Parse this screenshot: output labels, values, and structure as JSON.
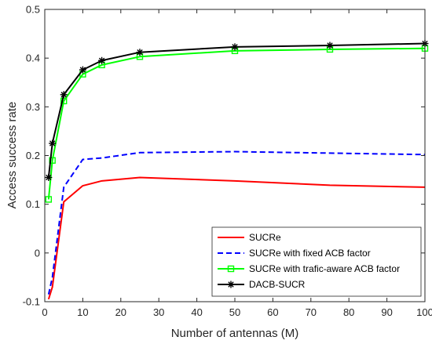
{
  "chart_data": {
    "type": "line",
    "title": "",
    "xlabel": "Number of antennas (M)",
    "ylabel": "Access success rate",
    "xlim": [
      0,
      100
    ],
    "ylim": [
      -0.1,
      0.5
    ],
    "xticks": [
      0,
      10,
      20,
      30,
      40,
      50,
      60,
      70,
      80,
      90,
      100
    ],
    "yticks": [
      -0.1,
      0,
      0.1,
      0.2,
      0.3,
      0.4,
      0.5
    ],
    "grid": false,
    "legend_position": "bottom-right",
    "series": [
      {
        "name": "SUCRe",
        "color": "#ff0000",
        "style": "solid",
        "marker": "none",
        "x": [
          1,
          2,
          5,
          10,
          15,
          25,
          50,
          75,
          100
        ],
        "y": [
          -0.095,
          -0.07,
          0.105,
          0.138,
          0.148,
          0.155,
          0.148,
          0.139,
          0.135
        ]
      },
      {
        "name": "SUCRe with fixed ACB factor",
        "color": "#0000ff",
        "style": "dashed",
        "marker": "none",
        "x": [
          1,
          2,
          5,
          10,
          15,
          25,
          50,
          75,
          100
        ],
        "y": [
          -0.085,
          -0.05,
          0.135,
          0.192,
          0.195,
          0.206,
          0.208,
          0.205,
          0.202
        ]
      },
      {
        "name": "SUCRe with trafic-aware ACB factor",
        "color": "#00ff00",
        "style": "solid",
        "marker": "square",
        "x": [
          1,
          2,
          5,
          10,
          15,
          25,
          50,
          75,
          100
        ],
        "y": [
          0.11,
          0.19,
          0.312,
          0.367,
          0.386,
          0.403,
          0.415,
          0.418,
          0.42
        ]
      },
      {
        "name": "DACB-SUCR",
        "color": "#000000",
        "style": "solid",
        "marker": "star",
        "x": [
          1,
          2,
          5,
          10,
          15,
          25,
          50,
          75,
          100
        ],
        "y": [
          0.155,
          0.225,
          0.325,
          0.376,
          0.395,
          0.412,
          0.423,
          0.426,
          0.43
        ]
      }
    ]
  }
}
